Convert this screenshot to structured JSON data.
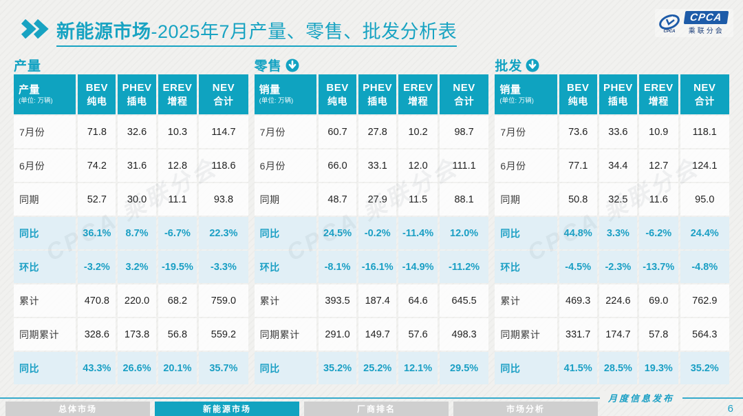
{
  "title": {
    "highlight": "新能源市场",
    "rest": "-2025年7月产量、零售、批发分析表"
  },
  "logo": {
    "brand": "CPCA",
    "brand_cn": "乘联分会"
  },
  "watermark": "CPCA 乘联分会",
  "unit_note": "(单位: 万辆)",
  "col_headers": [
    {
      "en": "BEV",
      "cn": "纯电"
    },
    {
      "en": "PHEV",
      "cn": "插电"
    },
    {
      "en": "EREV",
      "cn": "增程"
    },
    {
      "en": "NEV",
      "cn": "合计"
    }
  ],
  "tables": [
    {
      "section": "产量",
      "first_col": "产量",
      "rows": [
        {
          "label": "7月份",
          "values": [
            "71.8",
            "32.6",
            "10.3",
            "114.7"
          ],
          "hl": false
        },
        {
          "label": "6月份",
          "values": [
            "74.2",
            "31.6",
            "12.8",
            "118.6"
          ],
          "hl": false
        },
        {
          "label": "同期",
          "values": [
            "52.7",
            "30.0",
            "11.1",
            "93.8"
          ],
          "hl": false
        },
        {
          "label": "同比",
          "values": [
            "36.1%",
            "8.7%",
            "-6.7%",
            "22.3%"
          ],
          "hl": true
        },
        {
          "label": "环比",
          "values": [
            "-3.2%",
            "3.2%",
            "-19.5%",
            "-3.3%"
          ],
          "hl": true
        },
        {
          "label": "累计",
          "values": [
            "470.8",
            "220.0",
            "68.2",
            "759.0"
          ],
          "hl": false
        },
        {
          "label": "同期累计",
          "values": [
            "328.6",
            "173.8",
            "56.8",
            "559.2"
          ],
          "hl": false
        },
        {
          "label": "同比",
          "values": [
            "43.3%",
            "26.6%",
            "20.1%",
            "35.7%"
          ],
          "hl": true
        }
      ]
    },
    {
      "section": "零售",
      "first_col": "销量",
      "rows": [
        {
          "label": "7月份",
          "values": [
            "60.7",
            "27.8",
            "10.2",
            "98.7"
          ],
          "hl": false
        },
        {
          "label": "6月份",
          "values": [
            "66.0",
            "33.1",
            "12.0",
            "111.1"
          ],
          "hl": false
        },
        {
          "label": "同期",
          "values": [
            "48.7",
            "27.9",
            "11.5",
            "88.1"
          ],
          "hl": false
        },
        {
          "label": "同比",
          "values": [
            "24.5%",
            "-0.2%",
            "-11.4%",
            "12.0%"
          ],
          "hl": true
        },
        {
          "label": "环比",
          "values": [
            "-8.1%",
            "-16.1%",
            "-14.9%",
            "-11.2%"
          ],
          "hl": true
        },
        {
          "label": "累计",
          "values": [
            "393.5",
            "187.4",
            "64.6",
            "645.5"
          ],
          "hl": false
        },
        {
          "label": "同期累计",
          "values": [
            "291.0",
            "149.7",
            "57.6",
            "498.3"
          ],
          "hl": false
        },
        {
          "label": "同比",
          "values": [
            "35.2%",
            "25.2%",
            "12.1%",
            "29.5%"
          ],
          "hl": true
        }
      ]
    },
    {
      "section": "批发",
      "first_col": "销量",
      "rows": [
        {
          "label": "7月份",
          "values": [
            "73.6",
            "33.6",
            "10.9",
            "118.1"
          ],
          "hl": false
        },
        {
          "label": "6月份",
          "values": [
            "77.1",
            "34.4",
            "12.7",
            "124.1"
          ],
          "hl": false
        },
        {
          "label": "同期",
          "values": [
            "50.8",
            "32.5",
            "11.6",
            "95.0"
          ],
          "hl": false
        },
        {
          "label": "同比",
          "values": [
            "44.8%",
            "3.3%",
            "-6.2%",
            "24.4%"
          ],
          "hl": true
        },
        {
          "label": "环比",
          "values": [
            "-4.5%",
            "-2.3%",
            "-13.7%",
            "-4.8%"
          ],
          "hl": true
        },
        {
          "label": "累计",
          "values": [
            "469.3",
            "224.6",
            "69.0",
            "762.9"
          ],
          "hl": false
        },
        {
          "label": "同期累计",
          "values": [
            "331.7",
            "174.7",
            "57.8",
            "564.3"
          ],
          "hl": false
        },
        {
          "label": "同比",
          "values": [
            "41.5%",
            "28.5%",
            "19.3%",
            "35.2%"
          ],
          "hl": true
        }
      ]
    }
  ],
  "footer": {
    "tabs": [
      {
        "label": "总体市场",
        "active": false
      },
      {
        "label": "新能源市场",
        "active": true
      },
      {
        "label": "厂商排名",
        "active": false
      },
      {
        "label": "市场分析",
        "active": false
      }
    ],
    "caption": "月度信息发布",
    "page": "6"
  },
  "colors": {
    "teal": "#0fa3c0",
    "highlight_bg": "#e1eff6",
    "logo_blue": "#1d5ba8"
  }
}
